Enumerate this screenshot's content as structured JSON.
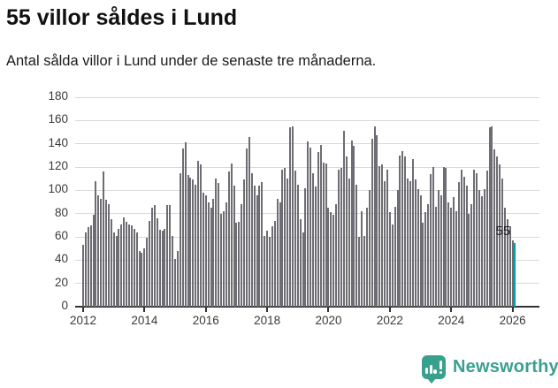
{
  "header": {
    "title": "55 villor såldes i Lund",
    "subtitle": "Antal sålda villor i Lund under de senaste tre månaderna."
  },
  "chart_data": {
    "type": "bar",
    "title": "55 villor såldes i Lund",
    "subtitle": "Antal sålda villor i Lund under de senaste tre månaderna.",
    "x_start": {
      "year": 2012,
      "month": 1
    },
    "x_frequency": "monthly",
    "x_tick_labels": [
      "2012",
      "2014",
      "2016",
      "2018",
      "2020",
      "2022",
      "2024",
      "2026"
    ],
    "y_tick_labels": [
      "0",
      "20",
      "40",
      "60",
      "80",
      "100",
      "120",
      "140",
      "160",
      "180"
    ],
    "ylim": [
      0,
      180
    ],
    "grid": "horizontal",
    "values": [
      53,
      64,
      68,
      70,
      79,
      108,
      96,
      93,
      116,
      92,
      88,
      75,
      64,
      61,
      67,
      71,
      77,
      73,
      71,
      70,
      67,
      64,
      48,
      46,
      50,
      59,
      74,
      85,
      87,
      76,
      66,
      65,
      67,
      87,
      87,
      61,
      41,
      48,
      115,
      136,
      141,
      113,
      111,
      109,
      105,
      125,
      122,
      98,
      96,
      90,
      85,
      93,
      110,
      106,
      80,
      82,
      90,
      116,
      123,
      104,
      72,
      73,
      88,
      109,
      136,
      146,
      115,
      104,
      96,
      104,
      107,
      61,
      65,
      60,
      69,
      74,
      93,
      90,
      118,
      119,
      110,
      154,
      155,
      117,
      105,
      75,
      64,
      102,
      142,
      137,
      115,
      103,
      133,
      139,
      124,
      123,
      85,
      81,
      79,
      88,
      118,
      119,
      151,
      129,
      110,
      143,
      138,
      105,
      60,
      82,
      61,
      85,
      100,
      144,
      155,
      147,
      121,
      122,
      108,
      118,
      81,
      71,
      86,
      100,
      130,
      134,
      129,
      110,
      108,
      127,
      109,
      101,
      96,
      72,
      81,
      88,
      114,
      120,
      86,
      100,
      96,
      120,
      119,
      90,
      85,
      94,
      82,
      107,
      118,
      112,
      104,
      80,
      88,
      118,
      115,
      100,
      95,
      101,
      117,
      154,
      155,
      135,
      129,
      122,
      110,
      85,
      75,
      69,
      57,
      55
    ],
    "highlight_last_bar": true,
    "last_value_annotation": "55",
    "legend": null,
    "colors": {
      "bar": "#6e6d73",
      "highlight": "#00a2a4",
      "grid": "#d9d9d9",
      "axis": "#333333"
    }
  },
  "footer": {
    "brand": "Newsworthy",
    "brand_color": "#3aa08e",
    "icon": "bar-chart-speech-bubble"
  }
}
